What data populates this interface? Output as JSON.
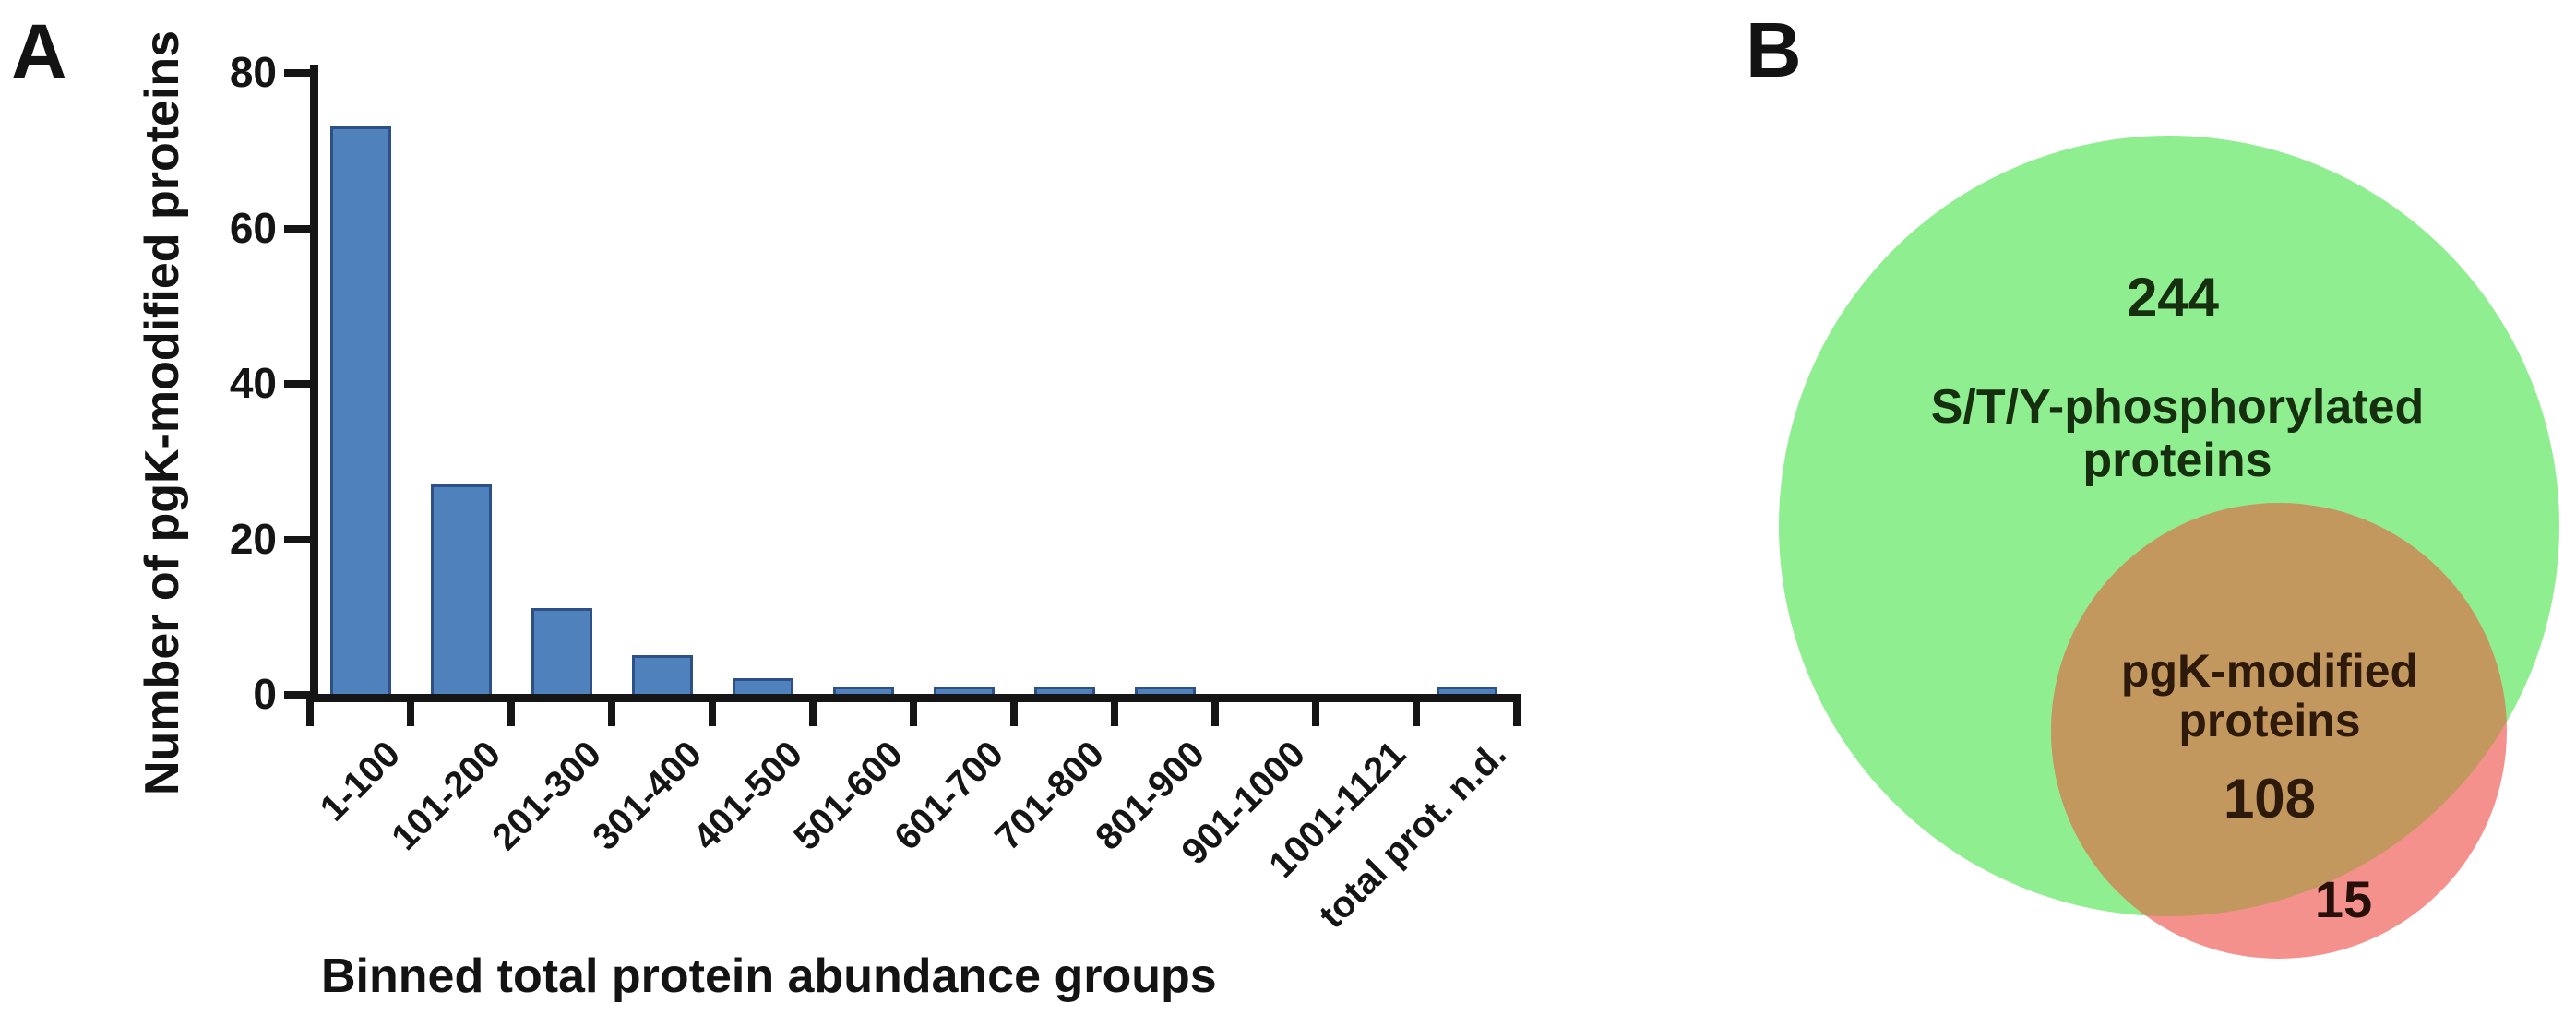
{
  "panels": {
    "a_label": "A",
    "b_label": "B"
  },
  "chart_data": {
    "type": "bar",
    "title": "",
    "xlabel": "Binned total protein abundance groups",
    "ylabel": "Number of pgK-modified proteins",
    "categories": [
      "1-100",
      "101-200",
      "201-300",
      "301-400",
      "401-500",
      "501-600",
      "601-700",
      "701-800",
      "801-900",
      "901-1000",
      "1001-1121",
      "total prot. n.d."
    ],
    "values": [
      73,
      27,
      11,
      5,
      2,
      1,
      1,
      1,
      1,
      0,
      0,
      1
    ],
    "ylim": [
      0,
      80
    ],
    "yticks": [
      0,
      20,
      40,
      60,
      80
    ],
    "grid": false,
    "legend": null,
    "bar_color": "#4f81bd",
    "bar_border_color": "#2d5186",
    "axis_color": "#151515"
  },
  "venn": {
    "green_set": {
      "count": "244",
      "label_line1": "S/T/Y-phosphorylated",
      "label_line2": "proteins",
      "color": "#8fee90",
      "text_color": "#16300f"
    },
    "pink_set": {
      "count": "108",
      "label_line1": "pgK-modified",
      "label_line2": "proteins",
      "color": "#f5918d",
      "text_color": "#2e1a0b",
      "outside_count": "15",
      "outside_count_color": "#27100a"
    },
    "overlap_color": "#c2985f"
  }
}
